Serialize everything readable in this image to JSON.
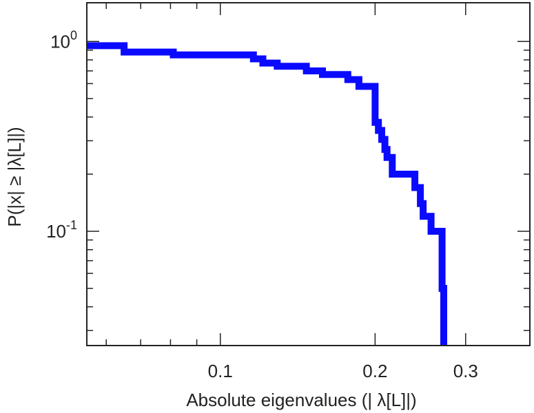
{
  "chart_data": {
    "type": "line",
    "title": "",
    "xlabel": "Absolute eigenvalues (|      λ[L]|)",
    "ylabel": "P(|x|  ≥ |λ[L]|)",
    "x_scale": "log",
    "y_scale": "log",
    "xlim": [
      0.055,
      0.4
    ],
    "ylim": [
      0.025,
      1.6
    ],
    "x_ticks": [
      {
        "value": 0.1,
        "label": "0.1"
      },
      {
        "value": 0.2,
        "label": "0.2"
      },
      {
        "value": 0.3,
        "label": "0.3"
      }
    ],
    "y_ticks": [
      {
        "value": 1,
        "base": "10",
        "exp": "0"
      },
      {
        "value": 0.1,
        "base": "10",
        "exp": "-1"
      }
    ],
    "series": [
      {
        "name": "",
        "color": "#0a0aff",
        "step": true,
        "x": [
          0.055,
          0.065,
          0.081,
          0.116,
          0.121,
          0.129,
          0.147,
          0.158,
          0.177,
          0.186,
          0.2,
          0.203,
          0.206,
          0.209,
          0.211,
          0.216,
          0.239,
          0.245,
          0.248,
          0.257,
          0.27,
          0.272
        ],
        "y": [
          0.95,
          0.88,
          0.85,
          0.81,
          0.77,
          0.74,
          0.7,
          0.67,
          0.63,
          0.58,
          0.375,
          0.34,
          0.305,
          0.27,
          0.245,
          0.2,
          0.17,
          0.14,
          0.12,
          0.1,
          0.05,
          0.025
        ]
      }
    ]
  }
}
